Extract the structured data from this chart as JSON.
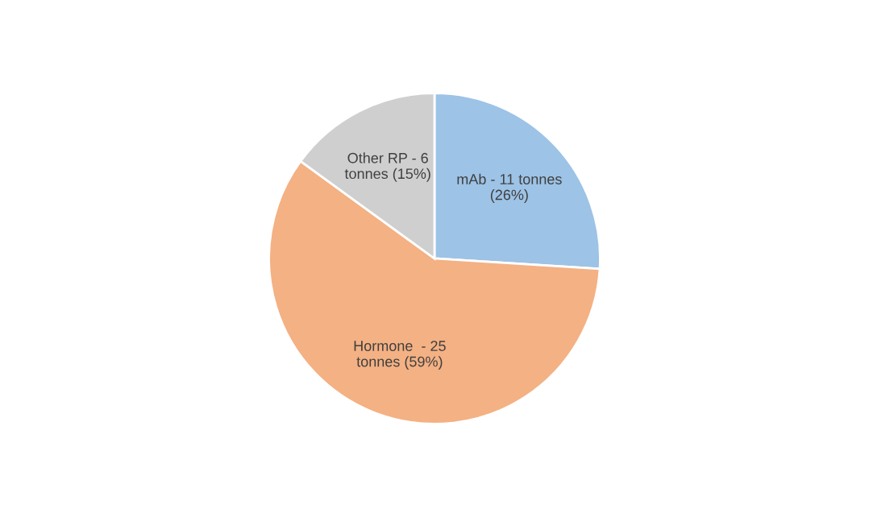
{
  "chart_data": {
    "type": "pie",
    "categories": [
      "mAb - 11 tonnes (26%)",
      "Hormone  - 25 tonnes (59%)",
      "Other RP - 6 tonnes (15%)"
    ],
    "values": [
      26,
      59,
      15
    ],
    "colors": [
      "#9dc3e6",
      "#f4b183",
      "#cfcfcf"
    ],
    "legend": false
  }
}
